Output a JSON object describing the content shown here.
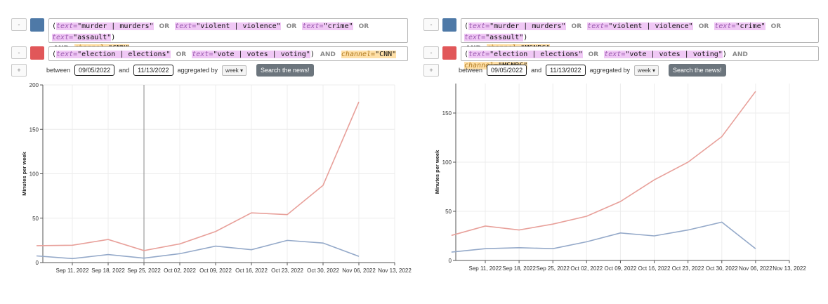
{
  "panels": [
    {
      "query1": {
        "remove": "-",
        "color": "#4e79a7",
        "t1": "\"murder | murders\"",
        "t2": "\"violent | violence\"",
        "t3": "\"crime\"",
        "t4": "\"assault\"",
        "chan": "\"CNN\""
      },
      "query2": {
        "remove": "-",
        "color": "#e15759",
        "t1": "\"election | elections\"",
        "t2": "\"vote | votes | voting\"",
        "chan": "\"CNN\""
      },
      "add_label": "+",
      "start": "09/05/2022",
      "end": "11/13/2022",
      "agg": "week"
    },
    {
      "query1": {
        "remove": "-",
        "color": "#4e79a7",
        "t1": "\"murder | murders\"",
        "t2": "\"violent | violence\"",
        "t3": "\"crime\"",
        "t4": "\"assault\"",
        "chan": "\"MSNBC\""
      },
      "query2": {
        "remove": "-",
        "color": "#e15759",
        "t1": "\"election | elections\"",
        "t2": "\"vote | votes | voting\"",
        "chan": "\"MSNBC\""
      },
      "add_label": "+",
      "start": "09/05/2022",
      "end": "11/13/2022",
      "agg": "week"
    }
  ],
  "labels": {
    "between": "between",
    "and": "and",
    "aggregated_by": "aggregated by",
    "search": "Search the news!",
    "text_key": "text=",
    "channel_key": "channel=",
    "or": "OR",
    "and_op": "AND",
    "open_paren": "(",
    "close_paren": ")"
  },
  "chart_data": [
    {
      "type": "line",
      "title": "",
      "ylabel": "Minutes per week",
      "xlabel": "",
      "ylim": [
        0,
        200
      ],
      "yticks": [
        0,
        50,
        100,
        150,
        200
      ],
      "x": [
        "Sep 11, 2022",
        "Sep 18, 2022",
        "Sep 25, 2022",
        "Oct 02, 2022",
        "Oct 09, 2022",
        "Oct 16, 2022",
        "Oct 23, 2022",
        "Oct 30, 2022",
        "Nov 06, 2022",
        "Nov 13, 2022"
      ],
      "grid": true,
      "series": [
        {
          "color": "#e8a09a",
          "values": [
            19,
            19.5,
            26,
            13.5,
            21,
            35,
            56,
            54,
            87,
            181
          ]
        },
        {
          "color": "#94a9c9",
          "values": [
            7.5,
            4.5,
            9,
            5,
            10,
            18.5,
            14.5,
            25,
            22,
            7
          ]
        }
      ],
      "cursor_index": 2
    },
    {
      "type": "line",
      "title": "",
      "ylabel": "Minutes per week",
      "xlabel": "",
      "ylim": [
        0,
        180
      ],
      "yticks": [
        0,
        50,
        100,
        150
      ],
      "x": [
        "Sep 11, 2022",
        "Sep 18, 2022",
        "Sep 25, 2022",
        "Oct 02, 2022",
        "Oct 09, 2022",
        "Oct 16, 2022",
        "Oct 23, 2022",
        "Oct 30, 2022",
        "Nov 06, 2022",
        "Nov 13, 2022"
      ],
      "grid": true,
      "series": [
        {
          "color": "#e8a09a",
          "values": [
            25.5,
            35,
            31,
            37,
            45,
            60,
            82,
            100,
            126,
            172
          ]
        },
        {
          "color": "#94a9c9",
          "values": [
            8.5,
            12,
            13,
            12,
            19,
            28,
            25,
            31,
            39,
            12
          ]
        }
      ],
      "cursor_index": null
    }
  ]
}
